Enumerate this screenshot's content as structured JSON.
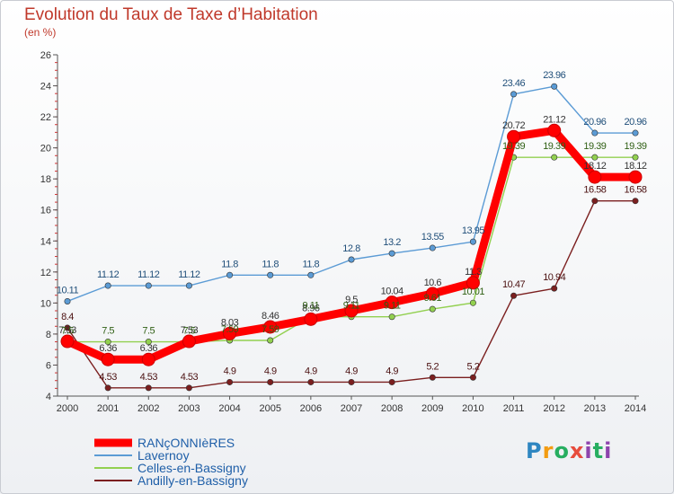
{
  "header": {
    "title": "Evolution du Taux de Taxe d’Habitation",
    "unit": "(en %)"
  },
  "logo": {
    "text": "Proxiti"
  },
  "chart_data": {
    "type": "line",
    "x": [
      2000,
      2001,
      2002,
      2003,
      2004,
      2005,
      2006,
      2007,
      2008,
      2009,
      2010,
      2011,
      2012,
      2013,
      2014
    ],
    "ylim": [
      4,
      26
    ],
    "yticks": [
      4,
      6,
      8,
      10,
      12,
      14,
      16,
      18,
      20,
      22,
      24,
      26
    ],
    "grid": false,
    "legend_position": "bottom-left",
    "series": [
      {
        "name": "RANçONNIèRES",
        "color": "#ff0000",
        "values": [
          7.53,
          6.36,
          6.36,
          7.53,
          8.03,
          8.46,
          8.96,
          9.5,
          10.04,
          10.6,
          11.3,
          20.72,
          21.12,
          18.12,
          18.12
        ],
        "labels": [
          "7.53",
          "6.36",
          "6.36",
          "7.53",
          "8.03",
          "8.46",
          "8.96",
          "9.5",
          "10.04",
          "10.6",
          "11.3",
          "20.72",
          "21.12",
          "18.12",
          "18.12"
        ]
      },
      {
        "name": "Lavernoy",
        "color": "#5b9bd5",
        "values": [
          10.11,
          11.12,
          11.12,
          11.12,
          11.8,
          11.8,
          11.8,
          12.8,
          13.2,
          13.55,
          13.95,
          23.46,
          23.96,
          20.96,
          20.96
        ],
        "labels": [
          "10.11",
          "11.12",
          "11.12",
          "11.12",
          "11.8",
          "11.8",
          "11.8",
          "12.8",
          "13.2",
          "13.55",
          "13.95",
          "23.46",
          "23.96",
          "20.96",
          "20.96"
        ]
      },
      {
        "name": "Celles-en-Bassigny",
        "color": "#92d050",
        "values": [
          7.5,
          7.5,
          7.5,
          7.5,
          7.59,
          7.59,
          9.11,
          9.11,
          9.11,
          9.61,
          10.01,
          19.39,
          19.39,
          19.39,
          19.39
        ],
        "labels": [
          "7.5",
          "7.5",
          "7.5",
          "7.5",
          "7.59",
          "7.59",
          "9.11",
          "9.11",
          "9.11",
          "9.61",
          "10.01",
          "19.39",
          "19.39",
          "19.39",
          "19.39"
        ]
      },
      {
        "name": "Andilly-en-Bassigny",
        "color": "#7b1f1f",
        "values": [
          8.4,
          4.53,
          4.53,
          4.53,
          4.9,
          4.9,
          4.9,
          4.9,
          4.9,
          5.2,
          5.2,
          10.47,
          10.94,
          16.58,
          16.58
        ],
        "labels": [
          "8.4",
          "4.53",
          "4.53",
          "4.53",
          "4.9",
          "4.9",
          "4.9",
          "4.9",
          "4.9",
          "5.2",
          "5.2",
          "10.47",
          "10.94",
          "16.58",
          "16.58"
        ]
      }
    ]
  }
}
